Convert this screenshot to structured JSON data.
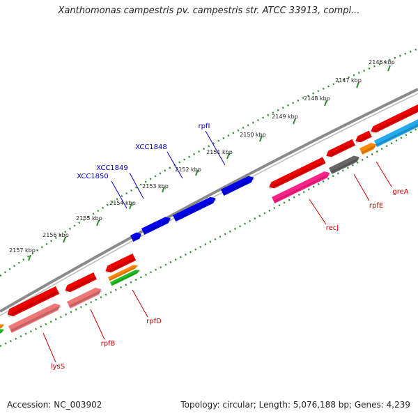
{
  "title": "Xanthomonas campestris pv. campestris str. ATCC 33913, compl...",
  "footer": {
    "accession": "Accession: NC_003902",
    "summary": "Topology: circular; Length: 5,076,188 bp; Genes: 4,239"
  },
  "colors": {
    "backbone": "#8a8a8a",
    "tick": "#2e8b2e",
    "gene_red": "#ee0000",
    "gene_pink": "#ee7777",
    "gene_magenta": "#ff2288",
    "gene_blue": "#0000ee",
    "gene_gray": "#666666",
    "gene_orange": "#ff8800",
    "gene_green": "#22bb22",
    "gene_cyan": "#22aaee",
    "label_blue": "#0000cc",
    "label_red": "#cc0000"
  },
  "kbp_labels": [
    "2146 kbp",
    "2147 kbp",
    "2148 kbp",
    "2149 kbp",
    "2150 kbp",
    "2151 kbp",
    "2152 kbp",
    "2153 kbp",
    "2154 kbp",
    "2155 kbp",
    "2156 kbp",
    "2157 kbp"
  ],
  "gene_labels_blue": [
    "rpfI",
    "XCC1848",
    "XCC1849",
    "XCC1850"
  ],
  "gene_labels_red": [
    "greA",
    "rpfE",
    "recJ",
    "rpfD",
    "rpfB",
    "lysS"
  ]
}
